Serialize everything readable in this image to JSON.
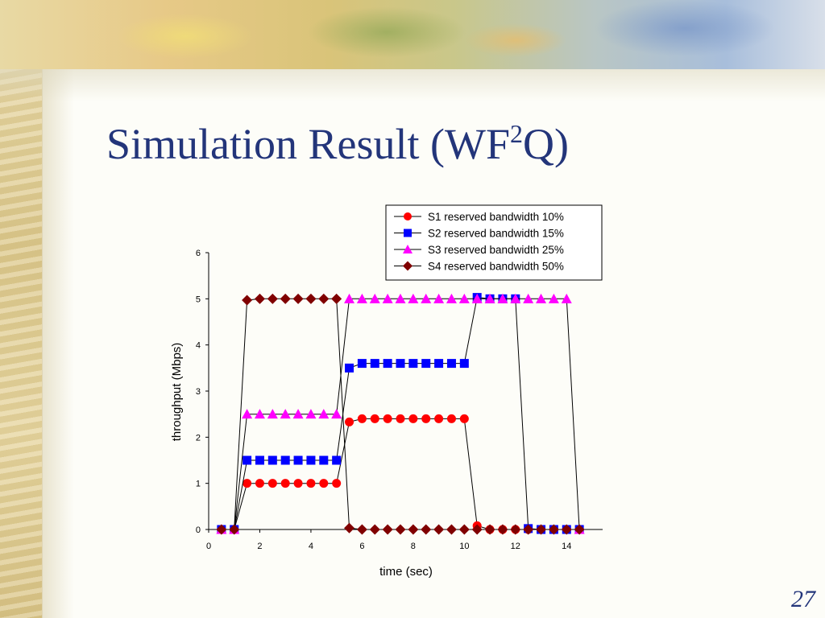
{
  "slide": {
    "title_main": "Simulation Result (WF",
    "title_sup": "2",
    "title_end": "Q)",
    "slide_number": "27"
  },
  "chart_data": {
    "type": "line",
    "xlabel": "time (sec)",
    "ylabel": "throughput (Mbps)",
    "xlim": [
      0,
      15
    ],
    "ylim": [
      0,
      6
    ],
    "x_ticks": [
      "0",
      "2",
      "4",
      "6",
      "8",
      "10",
      "12",
      "14"
    ],
    "y_ticks": [
      "0",
      "1",
      "2",
      "3",
      "4",
      "5",
      "6"
    ],
    "grid": false,
    "legend_position": "top-right",
    "series": [
      {
        "name": "S1 reserved bandwidth 10%",
        "color": "#ff0000",
        "marker": "circle",
        "points": [
          [
            0.5,
            0
          ],
          [
            1,
            0
          ],
          [
            1.5,
            1
          ],
          [
            2,
            1
          ],
          [
            2.5,
            1
          ],
          [
            3,
            1
          ],
          [
            3.5,
            1
          ],
          [
            4,
            1
          ],
          [
            4.5,
            1
          ],
          [
            5,
            1
          ],
          [
            5.5,
            2.33
          ],
          [
            6,
            2.4
          ],
          [
            6.5,
            2.4
          ],
          [
            7,
            2.4
          ],
          [
            7.5,
            2.4
          ],
          [
            8,
            2.4
          ],
          [
            8.5,
            2.4
          ],
          [
            9,
            2.4
          ],
          [
            9.5,
            2.4
          ],
          [
            10,
            2.4
          ],
          [
            10.5,
            0.08
          ],
          [
            11,
            0
          ],
          [
            11.5,
            0
          ],
          [
            12,
            0
          ],
          [
            12.5,
            0
          ],
          [
            13,
            0
          ],
          [
            13.5,
            0
          ],
          [
            14,
            0
          ],
          [
            14.5,
            0
          ]
        ]
      },
      {
        "name": "S2 reserved bandwidth 15%",
        "color": "#0000ff",
        "marker": "square",
        "points": [
          [
            0.5,
            0
          ],
          [
            1,
            0
          ],
          [
            1.5,
            1.5
          ],
          [
            2,
            1.5
          ],
          [
            2.5,
            1.5
          ],
          [
            3,
            1.5
          ],
          [
            3.5,
            1.5
          ],
          [
            4,
            1.5
          ],
          [
            4.5,
            1.5
          ],
          [
            5,
            1.5
          ],
          [
            5.5,
            3.5
          ],
          [
            6,
            3.6
          ],
          [
            6.5,
            3.6
          ],
          [
            7,
            3.6
          ],
          [
            7.5,
            3.6
          ],
          [
            8,
            3.6
          ],
          [
            8.5,
            3.6
          ],
          [
            9,
            3.6
          ],
          [
            9.5,
            3.6
          ],
          [
            10,
            3.6
          ],
          [
            10.5,
            5.03
          ],
          [
            11,
            5
          ],
          [
            11.5,
            5
          ],
          [
            12,
            5
          ],
          [
            12.5,
            0.02
          ],
          [
            13,
            0
          ],
          [
            13.5,
            0
          ],
          [
            14,
            0
          ],
          [
            14.5,
            0
          ]
        ]
      },
      {
        "name": "S3 reserved bandwidth 25%",
        "color": "#ff00ff",
        "marker": "triangle",
        "points": [
          [
            0.5,
            0
          ],
          [
            1,
            0
          ],
          [
            1.5,
            2.5
          ],
          [
            2,
            2.5
          ],
          [
            2.5,
            2.5
          ],
          [
            3,
            2.5
          ],
          [
            3.5,
            2.5
          ],
          [
            4,
            2.5
          ],
          [
            4.5,
            2.5
          ],
          [
            5,
            2.5
          ],
          [
            5.5,
            5
          ],
          [
            6,
            5
          ],
          [
            6.5,
            5
          ],
          [
            7,
            5
          ],
          [
            7.5,
            5
          ],
          [
            8,
            5
          ],
          [
            8.5,
            5
          ],
          [
            9,
            5
          ],
          [
            9.5,
            5
          ],
          [
            10,
            5
          ],
          [
            10.5,
            5
          ],
          [
            11,
            5
          ],
          [
            11.5,
            5
          ],
          [
            12,
            5
          ],
          [
            12.5,
            5
          ],
          [
            13,
            5
          ],
          [
            13.5,
            5
          ],
          [
            14,
            5
          ],
          [
            14.5,
            0
          ]
        ]
      },
      {
        "name": "S4 reserved bandwidth 50%",
        "color": "#800000",
        "marker": "diamond",
        "points": [
          [
            0.5,
            0
          ],
          [
            1,
            0
          ],
          [
            1.5,
            4.97
          ],
          [
            2,
            5
          ],
          [
            2.5,
            5
          ],
          [
            3,
            5
          ],
          [
            3.5,
            5
          ],
          [
            4,
            5
          ],
          [
            4.5,
            5
          ],
          [
            5,
            5
          ],
          [
            5.5,
            0.03
          ],
          [
            6,
            0
          ],
          [
            6.5,
            0
          ],
          [
            7,
            0
          ],
          [
            7.5,
            0
          ],
          [
            8,
            0
          ],
          [
            8.5,
            0
          ],
          [
            9,
            0
          ],
          [
            9.5,
            0
          ],
          [
            10,
            0
          ],
          [
            10.5,
            0
          ],
          [
            11,
            0
          ],
          [
            11.5,
            0
          ],
          [
            12,
            0
          ],
          [
            12.5,
            0
          ],
          [
            13,
            0
          ],
          [
            13.5,
            0
          ],
          [
            14,
            0
          ],
          [
            14.5,
            0
          ]
        ]
      }
    ]
  }
}
